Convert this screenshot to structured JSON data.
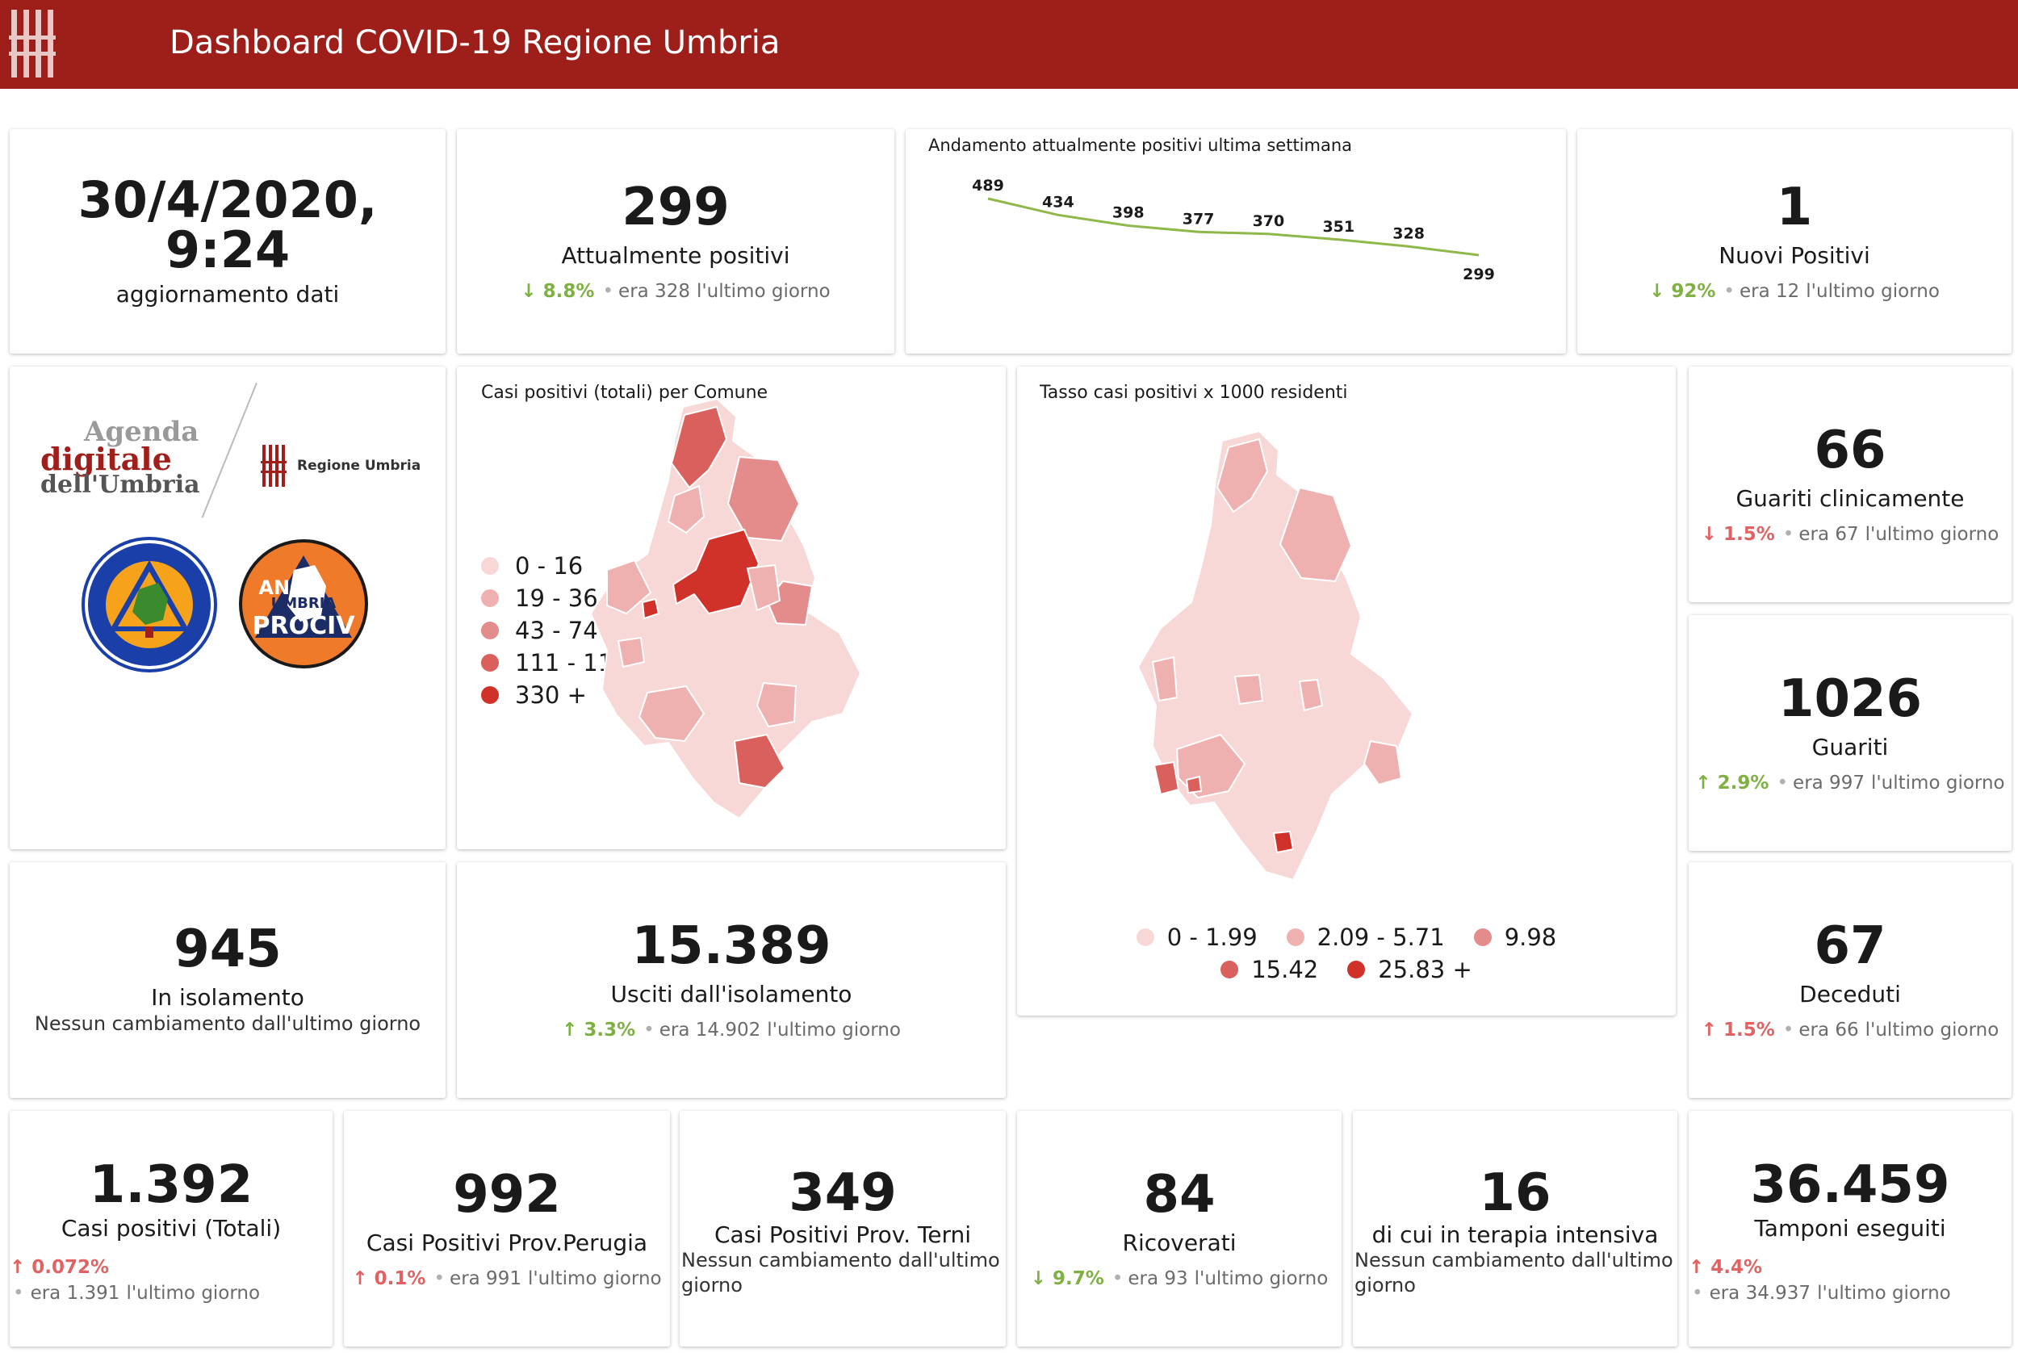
{
  "header": {
    "title": "Dashboard COVID-19 Regione Umbria"
  },
  "update": {
    "value": "30/4/2020, 9:24",
    "label": "aggiornamento dati"
  },
  "attualmente_positivi": {
    "value": "299",
    "label": "Attualmente positivi",
    "pct": "8.8%",
    "era": "era 328",
    "suffix": "l'ultimo giorno",
    "trend": "down-good"
  },
  "trend_chart": {
    "title": "Andamento attualmente positivi ultima settimana",
    "chart_data": {
      "type": "line",
      "title": "Andamento attualmente positivi ultima settimana",
      "values": [
        489,
        434,
        398,
        377,
        370,
        351,
        328,
        299
      ],
      "data_labels": [
        "489",
        "434",
        "398",
        "377",
        "370",
        "351",
        "328",
        "299"
      ],
      "color": "#8fb84a"
    }
  },
  "nuovi_positivi": {
    "value": "1",
    "label": "Nuovi Positivi",
    "pct": "92%",
    "era": "era 12",
    "suffix": "l'ultimo giorno",
    "trend": "down-good"
  },
  "logos": {
    "agenda_line1": "Agenda",
    "agenda_line2": "digitale",
    "agenda_line3": "dell'Umbria",
    "regione": "Regione Umbria",
    "protezione_top": "Protezione Civile",
    "protezione_bottom": "Regione Umbria",
    "anci_line1": "ANCI",
    "anci_line2": "UMBRIA",
    "anci_line3": "PROCIV"
  },
  "map_comune": {
    "title": "Casi positivi (totali) per Comune",
    "legend": [
      {
        "label": "0 - 16",
        "color": "#f8d7d7"
      },
      {
        "label": "19 - 36",
        "color": "#efb0b0"
      },
      {
        "label": "43 - 74",
        "color": "#e48c8c"
      },
      {
        "label": "111 - 117",
        "color": "#d9605c"
      },
      {
        "label": "330 +",
        "color": "#d0322a"
      }
    ]
  },
  "map_tasso": {
    "title": "Tasso casi positivi x 1000 residenti",
    "legend": [
      {
        "label": "0 - 1.99",
        "color": "#f8d7d7"
      },
      {
        "label": "2.09 - 5.71",
        "color": "#efb0b0"
      },
      {
        "label": "9.98",
        "color": "#e48c8c"
      },
      {
        "label": "15.42",
        "color": "#d9605c"
      },
      {
        "label": "25.83 +",
        "color": "#d0322a"
      }
    ]
  },
  "guariti_clinicamente": {
    "value": "66",
    "label": "Guariti clinicamente",
    "pct": "1.5%",
    "era": "era 67",
    "suffix": "l'ultimo giorno",
    "trend": "down-bad"
  },
  "guariti": {
    "value": "1026",
    "label": "Guariti",
    "pct": "2.9%",
    "era": "era 997",
    "suffix": "l'ultimo giorno",
    "trend": "up-good"
  },
  "isolamento": {
    "value": "945",
    "label": "In isolamento",
    "note": "Nessun cambiamento dall'ultimo giorno"
  },
  "usciti": {
    "value": "15.389",
    "label": "Usciti dall'isolamento",
    "pct": "3.3%",
    "era": "era 14.902",
    "suffix": "l'ultimo giorno",
    "trend": "up-good"
  },
  "deceduti": {
    "value": "67",
    "label": "Deceduti",
    "pct": "1.5%",
    "era": "era 66",
    "suffix": "l'ultimo giorno",
    "trend": "up-bad"
  },
  "casi_totali": {
    "value": "1.392",
    "label": "Casi positivi (Totali)",
    "pct": "0.072%",
    "era": "era 1.391",
    "suffix": "l'ultimo giorno",
    "trend": "up-bad"
  },
  "perugia": {
    "value": "992",
    "label": "Casi Positivi Prov.Perugia",
    "pct": "0.1%",
    "era": "era 991",
    "suffix": "l'ultimo giorno",
    "trend": "up-bad"
  },
  "terni": {
    "value": "349",
    "label": "Casi Positivi Prov. Terni",
    "note": "Nessun cambiamento dall'ultimo giorno"
  },
  "ricoverati": {
    "value": "84",
    "label": "Ricoverati",
    "pct": "9.7%",
    "era": "era 93",
    "suffix": "l'ultimo giorno",
    "trend": "down-good"
  },
  "terapia": {
    "value": "16",
    "label": "di cui in terapia intensiva",
    "note": "Nessun cambiamento dall'ultimo giorno"
  },
  "tamponi": {
    "value": "36.459",
    "label": "Tamponi eseguiti",
    "pct": "4.4%",
    "era": "era 34.937",
    "suffix": "l'ultimo giorno",
    "trend": "up-bad"
  }
}
